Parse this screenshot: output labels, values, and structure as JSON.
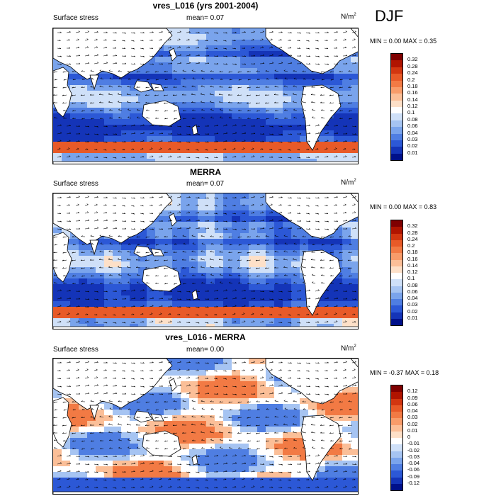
{
  "season": "DJF",
  "panels": [
    {
      "title": "vres_L016 (yrs 2001-2004)",
      "left_label": "Surface stress",
      "mean_label": "mean=",
      "mean_value": "0.07",
      "units": "N/m",
      "units_exp": "2",
      "min_label": "MIN =",
      "min_value": "0.00",
      "max_label": "MAX =",
      "max_value": "0.35",
      "colorbar_levels": [
        "0.32",
        "0.28",
        "0.24",
        "0.2",
        "0.18",
        "0.16",
        "0.14",
        "0.12",
        "0.1",
        "0.08",
        "0.06",
        "0.04",
        "0.03",
        "0.02",
        "0.01"
      ]
    },
    {
      "title": "MERRA",
      "left_label": "Surface stress",
      "mean_label": "mean=",
      "mean_value": "0.07",
      "units": "N/m",
      "units_exp": "2",
      "min_label": "MIN =",
      "min_value": "0.00",
      "max_label": "MAX =",
      "max_value": "0.83",
      "colorbar_levels": [
        "0.32",
        "0.28",
        "0.24",
        "0.2",
        "0.18",
        "0.16",
        "0.14",
        "0.12",
        "0.1",
        "0.08",
        "0.06",
        "0.04",
        "0.03",
        "0.02",
        "0.01"
      ]
    },
    {
      "title": "vres_L016 - MERRA",
      "left_label": "Surface stress",
      "mean_label": "mean=",
      "mean_value": "0.00",
      "units": "N/m",
      "units_exp": "2",
      "min_label": "MIN =",
      "min_value": "-0.37",
      "max_label": "MAX =",
      "max_value": "0.18",
      "colorbar_levels": [
        "0.12",
        "0.09",
        "0.06",
        "0.04",
        "0.03",
        "0.02",
        "0.01",
        "0",
        "-0.01",
        "-0.02",
        "-0.03",
        "-0.04",
        "-0.06",
        "-0.09",
        "-0.12"
      ]
    }
  ],
  "colors": {
    "colorbar_top_to_bottom": [
      "#7f0000",
      "#b01400",
      "#d23610",
      "#e85a28",
      "#f27a44",
      "#f89c6a",
      "#fbbf98",
      "#fde0c8",
      "#ffffff",
      "#cfe0f8",
      "#a6c4f2",
      "#7aa4ec",
      "#4f7ee2",
      "#2c58d6",
      "#1434b8",
      "#00108a"
    ],
    "ocean_base": "#3f6fdc",
    "land": "#ffffff",
    "vector": "#000000"
  }
}
